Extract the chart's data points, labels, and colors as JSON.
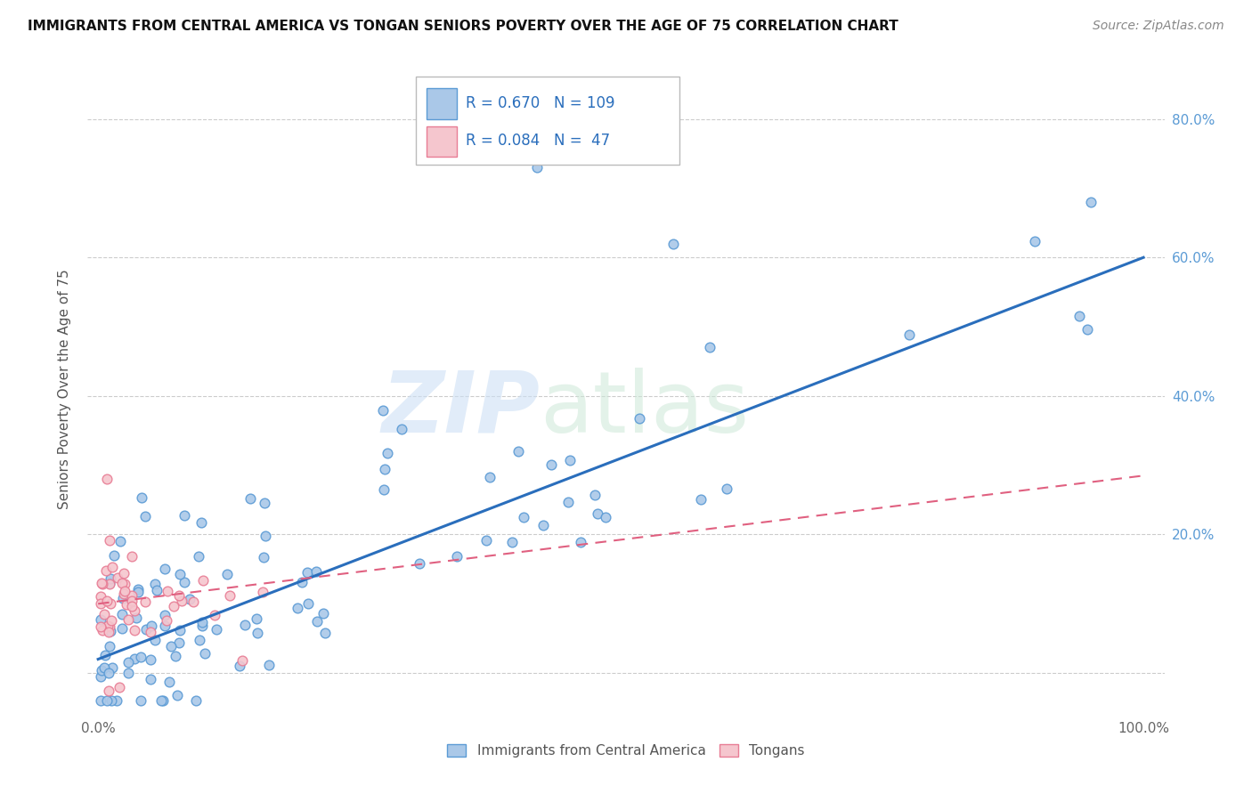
{
  "title": "IMMIGRANTS FROM CENTRAL AMERICA VS TONGAN SENIORS POVERTY OVER THE AGE OF 75 CORRELATION CHART",
  "source": "Source: ZipAtlas.com",
  "ylabel": "Seniors Poverty Over the Age of 75",
  "xlim": [
    -0.01,
    1.02
  ],
  "ylim": [
    -0.06,
    0.88
  ],
  "xticks": [
    0.0,
    0.2,
    0.4,
    0.6,
    0.8,
    1.0
  ],
  "yticks": [
    0.0,
    0.2,
    0.4,
    0.6,
    0.8
  ],
  "xtick_labels": [
    "0.0%",
    "",
    "",
    "",
    "",
    "100.0%"
  ],
  "ytick_labels_right": [
    "",
    "20.0%",
    "40.0%",
    "60.0%",
    "80.0%"
  ],
  "blue_color": "#aac8e8",
  "blue_edge_color": "#5b9bd5",
  "pink_color": "#f5c6ce",
  "pink_edge_color": "#e87d95",
  "blue_line_color": "#2a6ebc",
  "pink_line_color": "#e06080",
  "watermark_zip_color": "#c8dff0",
  "watermark_atlas_color": "#c8dff0",
  "legend_R1": "0.670",
  "legend_N1": "109",
  "legend_R2": "0.084",
  "legend_N2": "47",
  "blue_line_x0": 0.0,
  "blue_line_y0": 0.02,
  "blue_line_x1": 1.0,
  "blue_line_y1": 0.6,
  "pink_line_x0": 0.0,
  "pink_line_y0": 0.1,
  "pink_line_x1": 1.0,
  "pink_line_y1": 0.285,
  "background_color": "#ffffff",
  "grid_color": "#cccccc",
  "title_fontsize": 11,
  "axis_label_color": "#888888",
  "tick_color": "#5b9bd5"
}
